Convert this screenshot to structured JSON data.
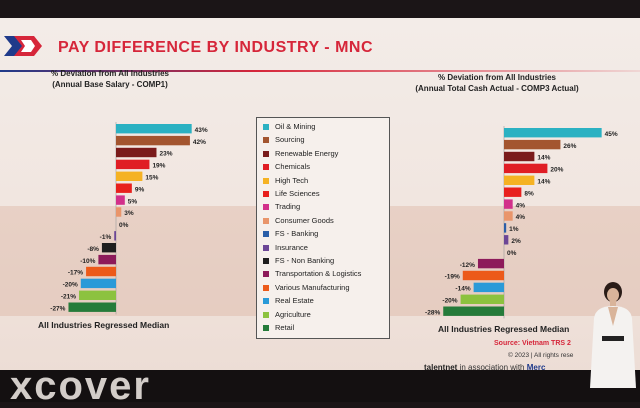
{
  "slide": {
    "title": "PAY DIFFERENCE BY INDUSTRY - MNC",
    "source": "Source: Vietnam TRS 2",
    "copyright": "© 2023 | All rights rese",
    "brand": "talentnet",
    "association": "in association with",
    "partner": "Merc",
    "backdrop_text": "xcover"
  },
  "legend": {
    "items": [
      {
        "label": "Oil & Mining",
        "color": "#2bb1c2"
      },
      {
        "label": "Sourcing",
        "color": "#a3552f"
      },
      {
        "label": "Renewable Energy",
        "color": "#7a1b1b"
      },
      {
        "label": "Chemicals",
        "color": "#e01d24"
      },
      {
        "label": "High Tech",
        "color": "#f5b223"
      },
      {
        "label": "Life Sciences",
        "color": "#e8201d"
      },
      {
        "label": "Trading",
        "color": "#d2308a"
      },
      {
        "label": "Consumer Goods",
        "color": "#e9956b"
      },
      {
        "label": "FS - Banking",
        "color": "#2a5ea8"
      },
      {
        "label": "Insurance",
        "color": "#6c4696"
      },
      {
        "label": "FS - Non Banking",
        "color": "#1e1e1e"
      },
      {
        "label": "Transportation & Logistics",
        "color": "#8d1a5a"
      },
      {
        "label": "Various Manufacturing",
        "color": "#ec5a1a"
      },
      {
        "label": "Real Estate",
        "color": "#2a9ad8"
      },
      {
        "label": "Agriculture",
        "color": "#8cc23f"
      },
      {
        "label": "Retail",
        "color": "#257b3a"
      }
    ]
  },
  "chart_data": [
    {
      "type": "bar",
      "orientation": "horizontal",
      "title": "% Deviation from All Industries",
      "subtitle": "(Annual Base Salary - COMP1)",
      "baseline_label": "All Industries Regressed Median",
      "categories": [
        "Oil & Mining",
        "Sourcing",
        "Renewable Energy",
        "Chemicals",
        "High Tech",
        "Life Sciences",
        "Trading",
        "Consumer Goods",
        "FS - Banking",
        "Insurance",
        "FS - Non Banking",
        "Transportation & Logistics",
        "Various Manufacturing",
        "Real Estate",
        "Agriculture",
        "Retail"
      ],
      "values": [
        43,
        42,
        23,
        19,
        15,
        9,
        5,
        3,
        0,
        -1,
        -8,
        -10,
        -17,
        -20,
        -21,
        -27
      ],
      "value_labels": [
        "43%",
        "42%",
        "23%",
        "19%",
        "15%",
        "9%",
        "5%",
        "3%",
        "0%",
        "-1%",
        "-8%",
        "-10%",
        "-17%",
        "-20%",
        "-21%",
        "-27%"
      ],
      "xlim": [
        -30,
        45
      ]
    },
    {
      "type": "bar",
      "orientation": "horizontal",
      "title": "% Deviation from All Industries",
      "subtitle": "(Annual Total Cash Actual - COMP3 Actual)",
      "baseline_label": "All Industries Regressed Median",
      "categories": [
        "Oil & Mining",
        "Sourcing",
        "Renewable Energy",
        "Chemicals",
        "High Tech",
        "Life Sciences",
        "Trading",
        "Consumer Goods",
        "FS - Banking",
        "Insurance",
        "FS - Non Banking",
        "Transportation & Logistics",
        "Various Manufacturing",
        "Real Estate",
        "Agriculture",
        "Retail"
      ],
      "values": [
        45,
        26,
        14,
        20,
        14,
        8,
        4,
        4,
        1,
        2,
        0,
        -12,
        -19,
        -14,
        -20,
        -28
      ],
      "value_labels": [
        "45%",
        "26%",
        "14%",
        "20%",
        "14%",
        "8%",
        "4%",
        "4%",
        "1%",
        "2%",
        "0%",
        "-12%",
        "-19%",
        "-14%",
        "-20%",
        "-28%"
      ],
      "xlim": [
        -30,
        45
      ]
    }
  ]
}
